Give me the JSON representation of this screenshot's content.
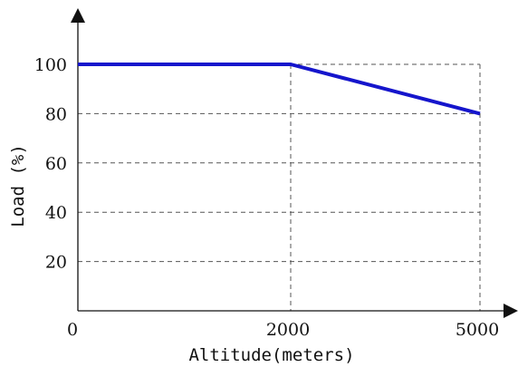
{
  "chart_data": {
    "type": "line",
    "title": "",
    "xlabel": "Altitude(meters)",
    "ylabel": "Load (%)",
    "x_ticks": [
      "0",
      "2000",
      "5000"
    ],
    "y_ticks": [
      20,
      40,
      60,
      80,
      100
    ],
    "ylim": [
      0,
      100
    ],
    "grid": true,
    "series": [
      {
        "color": "#1515cc",
        "points": [
          {
            "x": "0",
            "y": 100
          },
          {
            "x": "2000",
            "y": 100
          },
          {
            "x": "5000",
            "y": 80
          }
        ]
      }
    ]
  }
}
